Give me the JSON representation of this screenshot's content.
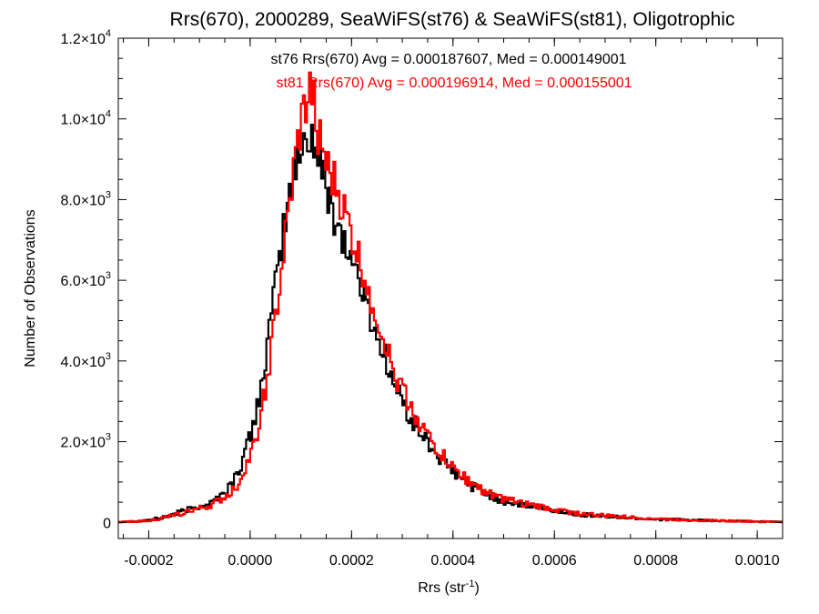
{
  "chart_data": {
    "type": "histogram",
    "title": "Rrs(670), 2000289, SeaWiFS(st76) & SeaWiFS(st81), Oligotrophic",
    "xlabel": "Rrs (str",
    "xlabel_sup": "-1",
    "xlabel_end": ")",
    "ylabel": "Number of Observations",
    "xlim": [
      -0.00026,
      0.00105
    ],
    "ylim": [
      -400,
      12000
    ],
    "x_ticks": [
      {
        "value": -0.0002,
        "label": "-0.0002"
      },
      {
        "value": 0.0,
        "label": "0.0000"
      },
      {
        "value": 0.0002,
        "label": "0.0002"
      },
      {
        "value": 0.0004,
        "label": "0.0004"
      },
      {
        "value": 0.0006,
        "label": "0.0006"
      },
      {
        "value": 0.0008,
        "label": "0.0008"
      },
      {
        "value": 0.001,
        "label": "0.0010"
      }
    ],
    "y_ticks": [
      {
        "value": 0,
        "mantissa": "0",
        "exponent": ""
      },
      {
        "value": 2000,
        "mantissa": "2.0×10",
        "exponent": "3"
      },
      {
        "value": 4000,
        "mantissa": "4.0×10",
        "exponent": "3"
      },
      {
        "value": 6000,
        "mantissa": "6.0×10",
        "exponent": "3"
      },
      {
        "value": 8000,
        "mantissa": "8.0×10",
        "exponent": "3"
      },
      {
        "value": 10000,
        "mantissa": "1.0×10",
        "exponent": "4"
      },
      {
        "value": 12000,
        "mantissa": "1.2×10",
        "exponent": "4"
      }
    ],
    "annotations": [
      {
        "text": "st76 Rrs(670) Avg = 0.000187607, Med = 0.000149001",
        "color": "#000000"
      },
      {
        "text": "st81 Rrs(670) Avg = 0.000196914, Med = 0.000155001",
        "color": "#ff0000"
      }
    ],
    "series": [
      {
        "color": "#000000",
        "points": [
          [
            -0.00026,
            10
          ],
          [
            -0.00022,
            30
          ],
          [
            -0.0002,
            60
          ],
          [
            -0.00018,
            100
          ],
          [
            -0.00016,
            160
          ],
          [
            -0.00014,
            250
          ],
          [
            -0.00012,
            330
          ],
          [
            -0.0001,
            400
          ],
          [
            -8e-05,
            460
          ],
          [
            -7e-05,
            560
          ],
          [
            -6e-05,
            640
          ],
          [
            -5e-05,
            760
          ],
          [
            -4e-05,
            900
          ],
          [
            -3e-05,
            1100
          ],
          [
            -2e-05,
            1350
          ],
          [
            -1e-05,
            1750
          ],
          [
            0.0,
            2100
          ],
          [
            1e-05,
            2600
          ],
          [
            2e-05,
            3300
          ],
          [
            3e-05,
            4000
          ],
          [
            4e-05,
            4950
          ],
          [
            5e-05,
            5800
          ],
          [
            6e-05,
            6800
          ],
          [
            7e-05,
            7500
          ],
          [
            8e-05,
            8400
          ],
          [
            9e-05,
            8700
          ],
          [
            0.0001,
            9200
          ],
          [
            0.00011,
            9500
          ],
          [
            0.00012,
            9700
          ],
          [
            0.00013,
            9200
          ],
          [
            0.00014,
            8700
          ],
          [
            0.00015,
            8300
          ],
          [
            0.00016,
            7900
          ],
          [
            0.00017,
            7500
          ],
          [
            0.00018,
            7200
          ],
          [
            0.00019,
            6800
          ],
          [
            0.0002,
            6500
          ],
          [
            0.00021,
            6200
          ],
          [
            0.00022,
            5800
          ],
          [
            0.00023,
            5400
          ],
          [
            0.00024,
            5000
          ],
          [
            0.00025,
            4600
          ],
          [
            0.00026,
            4300
          ],
          [
            0.00027,
            4000
          ],
          [
            0.00028,
            3500
          ],
          [
            0.0003,
            3000
          ],
          [
            0.00032,
            2500
          ],
          [
            0.00034,
            2150
          ],
          [
            0.00036,
            1800
          ],
          [
            0.00038,
            1500
          ],
          [
            0.0004,
            1250
          ],
          [
            0.00042,
            1050
          ],
          [
            0.00044,
            880
          ],
          [
            0.00046,
            740
          ],
          [
            0.00048,
            620
          ],
          [
            0.0005,
            520
          ],
          [
            0.00055,
            400
          ],
          [
            0.0006,
            290
          ],
          [
            0.00065,
            200
          ],
          [
            0.0007,
            150
          ],
          [
            0.00075,
            110
          ],
          [
            0.0008,
            80
          ],
          [
            0.00085,
            60
          ],
          [
            0.0009,
            45
          ],
          [
            0.00095,
            30
          ],
          [
            0.001,
            20
          ],
          [
            0.00105,
            10
          ]
        ]
      },
      {
        "color": "#ff0000",
        "points": [
          [
            -0.00026,
            8
          ],
          [
            -0.00022,
            25
          ],
          [
            -0.0002,
            50
          ],
          [
            -0.00018,
            80
          ],
          [
            -0.00016,
            140
          ],
          [
            -0.00014,
            210
          ],
          [
            -0.00012,
            280
          ],
          [
            -0.0001,
            340
          ],
          [
            -8e-05,
            400
          ],
          [
            -7e-05,
            470
          ],
          [
            -6e-05,
            540
          ],
          [
            -5e-05,
            620
          ],
          [
            -4e-05,
            720
          ],
          [
            -3e-05,
            850
          ],
          [
            -2e-05,
            1050
          ],
          [
            -1e-05,
            1350
          ],
          [
            0.0,
            1600
          ],
          [
            1e-05,
            2000
          ],
          [
            2e-05,
            2600
          ],
          [
            3e-05,
            3300
          ],
          [
            4e-05,
            4100
          ],
          [
            5e-05,
            5000
          ],
          [
            6e-05,
            6000
          ],
          [
            7e-05,
            7000
          ],
          [
            8e-05,
            8000
          ],
          [
            9e-05,
            9000
          ],
          [
            0.0001,
            9800
          ],
          [
            0.00011,
            10300
          ],
          [
            0.00012,
            10700
          ],
          [
            0.00013,
            10000
          ],
          [
            0.00014,
            9400
          ],
          [
            0.00015,
            8800
          ],
          [
            0.00016,
            8500
          ],
          [
            0.00017,
            8300
          ],
          [
            0.00018,
            7900
          ],
          [
            0.00019,
            7500
          ],
          [
            0.0002,
            7100
          ],
          [
            0.00021,
            6700
          ],
          [
            0.00022,
            6300
          ],
          [
            0.00023,
            5900
          ],
          [
            0.00024,
            5500
          ],
          [
            0.00025,
            5100
          ],
          [
            0.00026,
            4700
          ],
          [
            0.00027,
            4300
          ],
          [
            0.00028,
            3800
          ],
          [
            0.0003,
            3300
          ],
          [
            0.00032,
            2800
          ],
          [
            0.00034,
            2350
          ],
          [
            0.00036,
            1950
          ],
          [
            0.00038,
            1650
          ],
          [
            0.0004,
            1350
          ],
          [
            0.00042,
            1150
          ],
          [
            0.00044,
            960
          ],
          [
            0.00046,
            800
          ],
          [
            0.00048,
            680
          ],
          [
            0.0005,
            570
          ],
          [
            0.00055,
            440
          ],
          [
            0.0006,
            320
          ],
          [
            0.00065,
            220
          ],
          [
            0.0007,
            165
          ],
          [
            0.00075,
            120
          ],
          [
            0.0008,
            90
          ],
          [
            0.00085,
            65
          ],
          [
            0.0009,
            48
          ],
          [
            0.00095,
            32
          ],
          [
            0.001,
            22
          ],
          [
            0.00105,
            12
          ]
        ]
      }
    ]
  }
}
